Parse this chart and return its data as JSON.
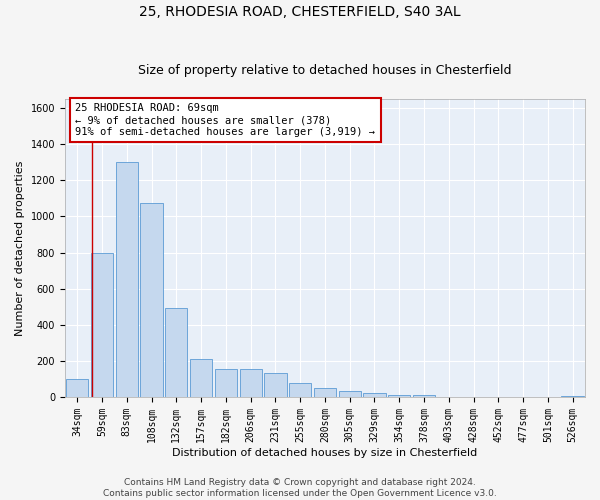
{
  "title1": "25, RHODESIA ROAD, CHESTERFIELD, S40 3AL",
  "title2": "Size of property relative to detached houses in Chesterfield",
  "xlabel": "Distribution of detached houses by size in Chesterfield",
  "ylabel": "Number of detached properties",
  "categories": [
    "34sqm",
    "59sqm",
    "83sqm",
    "108sqm",
    "132sqm",
    "157sqm",
    "182sqm",
    "206sqm",
    "231sqm",
    "255sqm",
    "280sqm",
    "305sqm",
    "329sqm",
    "354sqm",
    "378sqm",
    "403sqm",
    "428sqm",
    "452sqm",
    "477sqm",
    "501sqm",
    "526sqm"
  ],
  "values": [
    100,
    800,
    1300,
    1075,
    490,
    210,
    155,
    155,
    130,
    80,
    50,
    35,
    20,
    10,
    10,
    0,
    0,
    0,
    0,
    0,
    5
  ],
  "bar_color": "#c5d8ee",
  "bar_edge_color": "#5b9bd5",
  "bg_color": "#e8eff8",
  "grid_color": "#ffffff",
  "annotation_text": "25 RHODESIA ROAD: 69sqm\n← 9% of detached houses are smaller (378)\n91% of semi-detached houses are larger (3,919) →",
  "annotation_box_color": "#ffffff",
  "annotation_box_edge": "#cc0000",
  "vline_color": "#cc0000",
  "ylim": [
    0,
    1650
  ],
  "yticks": [
    0,
    200,
    400,
    600,
    800,
    1000,
    1200,
    1400,
    1600
  ],
  "footer": "Contains HM Land Registry data © Crown copyright and database right 2024.\nContains public sector information licensed under the Open Government Licence v3.0.",
  "title_fontsize": 10,
  "subtitle_fontsize": 9,
  "axis_label_fontsize": 8,
  "tick_fontsize": 7,
  "annot_fontsize": 7.5,
  "footer_fontsize": 6.5
}
